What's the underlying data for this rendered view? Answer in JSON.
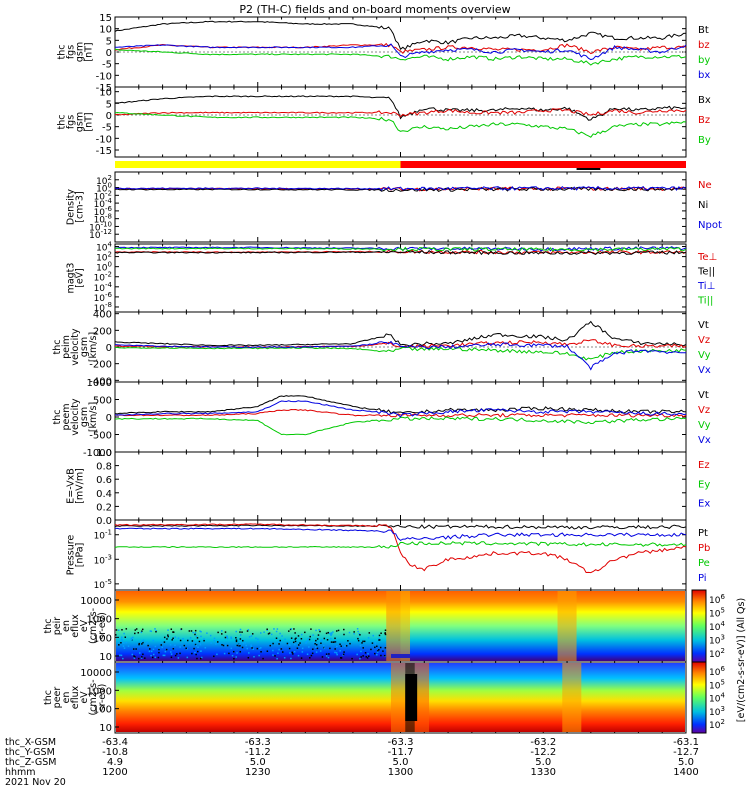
{
  "title": "P2 (TH-C) fields and on-board moments overview",
  "time_axis": {
    "ticks": [
      {
        "label": "1200",
        "t": 0
      },
      {
        "label": "1230",
        "t": 30
      },
      {
        "label": "1300",
        "t": 60
      },
      {
        "label": "1330",
        "t": 90
      },
      {
        "label": "1400",
        "t": 120
      }
    ],
    "rows": [
      {
        "name": "thc_X-GSM",
        "values": [
          "-63.4",
          "-63.3",
          "-63.3",
          "-63.2",
          "-63.1"
        ]
      },
      {
        "name": "thc_Y-GSM",
        "values": [
          "-10.8",
          "-11.2",
          "-11.7",
          "-12.2",
          "-12.7"
        ]
      },
      {
        "name": "thc_Z-GSM",
        "values": [
          "4.9",
          "5.0",
          "5.0",
          "5.0",
          "5.0"
        ]
      },
      {
        "name": "hhmm",
        "values": [
          "1200",
          "1230",
          "1300",
          "1330",
          "1400"
        ]
      }
    ],
    "date": "2021 Nov 20"
  },
  "colorbar": {
    "label": "[eV/(cm2-s-sr-eV)] (All Qs)",
    "ticks_top": [
      "10^6",
      "10^5",
      "10^4",
      "10^3",
      "10^2"
    ],
    "ticks_bottom": [
      "10^6",
      "10^5",
      "10^4",
      "10^3",
      "10^2"
    ]
  },
  "colors": {
    "black": "#000000",
    "red": "#e00000",
    "green": "#00c800",
    "blue": "#0000e0",
    "yellow": "#ffff00",
    "barred": "#ff0000"
  },
  "chart_data": [
    {
      "type": "line",
      "id": "fgs",
      "ylabel": [
        "thc",
        "fgs",
        "gsm",
        "[nT]"
      ],
      "ylim": [
        -15,
        15
      ],
      "yticks": [
        15,
        10,
        5,
        0,
        -5,
        -10,
        -15
      ],
      "series": [
        {
          "name": "Bt",
          "color": "black",
          "x": [
            0,
            10,
            20,
            30,
            40,
            50,
            58,
            60,
            65,
            70,
            75,
            80,
            85,
            90,
            95,
            100,
            105,
            110,
            115,
            120
          ],
          "values": [
            9,
            12,
            13,
            13,
            12,
            12,
            10,
            1,
            5,
            4,
            6,
            6,
            7,
            6,
            5,
            8,
            6,
            6,
            6,
            8
          ]
        },
        {
          "name": "bz",
          "color": "red",
          "x": [
            0,
            10,
            20,
            30,
            40,
            50,
            58,
            60,
            65,
            70,
            75,
            80,
            85,
            90,
            95,
            100,
            105,
            110,
            115,
            120
          ],
          "values": [
            1,
            3,
            2,
            2,
            2,
            3,
            3,
            0,
            1,
            2,
            2,
            1,
            1,
            1,
            3,
            0,
            2,
            1,
            2,
            2
          ]
        },
        {
          "name": "by",
          "color": "green",
          "x": [
            0,
            10,
            20,
            30,
            40,
            50,
            58,
            60,
            65,
            70,
            75,
            80,
            85,
            90,
            95,
            100,
            105,
            110,
            115,
            120
          ],
          "values": [
            1,
            0,
            -1,
            -1,
            -1,
            -1,
            -2,
            -3,
            -2,
            -3,
            -2,
            -3,
            -2,
            -3,
            -3,
            -5,
            -3,
            -2,
            -2,
            -2
          ]
        },
        {
          "name": "bx",
          "color": "blue",
          "x": [
            0,
            10,
            20,
            30,
            40,
            50,
            58,
            60,
            65,
            70,
            75,
            80,
            85,
            90,
            95,
            100,
            105,
            110,
            115,
            120
          ],
          "values": [
            2,
            3,
            2,
            2,
            2,
            2,
            3,
            -2,
            0,
            1,
            1,
            0,
            1,
            0,
            1,
            -3,
            2,
            1,
            0,
            3
          ]
        }
      ]
    },
    {
      "type": "line",
      "id": "fgs2",
      "ylabel": [
        "thc",
        "fgs",
        "gsm",
        "[nT]"
      ],
      "ylim": [
        -18,
        12
      ],
      "yticks": [
        10,
        5,
        0,
        -5,
        -10,
        -15
      ],
      "series": [
        {
          "name": "Bx",
          "color": "black",
          "x": [
            0,
            10,
            20,
            30,
            40,
            50,
            58,
            60,
            65,
            70,
            75,
            80,
            85,
            90,
            95,
            100,
            105,
            110,
            115,
            120
          ],
          "values": [
            5,
            7,
            8,
            8,
            8,
            8,
            7,
            -1,
            3,
            2,
            2,
            2,
            3,
            2,
            3,
            -2,
            3,
            2,
            3,
            3
          ]
        },
        {
          "name": "Bz",
          "color": "red",
          "x": [
            0,
            10,
            20,
            30,
            40,
            50,
            58,
            60,
            65,
            70,
            75,
            80,
            85,
            90,
            95,
            100,
            105,
            110,
            115,
            120
          ],
          "values": [
            0,
            1,
            1,
            1,
            1,
            1,
            1,
            0,
            1,
            2,
            1,
            1,
            1,
            2,
            2,
            0,
            2,
            1,
            2,
            2
          ]
        },
        {
          "name": "By",
          "color": "green",
          "x": [
            0,
            10,
            20,
            30,
            40,
            50,
            58,
            60,
            65,
            70,
            75,
            80,
            85,
            90,
            95,
            100,
            105,
            110,
            115,
            120
          ],
          "values": [
            1,
            0,
            -1,
            -1,
            -1,
            -1,
            -2,
            -7,
            -5,
            -6,
            -5,
            -4,
            -4,
            -5,
            -6,
            -9,
            -5,
            -4,
            -4,
            -3
          ]
        }
      ]
    },
    {
      "type": "bar",
      "id": "status",
      "segments": [
        {
          "from": 0,
          "to": 60,
          "color": "yellow"
        },
        {
          "from": 60,
          "to": 120,
          "color": "barred"
        }
      ]
    },
    {
      "type": "line",
      "id": "density",
      "log": true,
      "ylabel": [
        "Density",
        "[cm-3]"
      ],
      "ylim": [
        -14,
        4
      ],
      "yticks": [
        2,
        0,
        -2,
        -4,
        -6,
        -8,
        -10,
        -12
      ],
      "series": [
        {
          "name": "Ne",
          "color": "red",
          "x": [
            0,
            30,
            60,
            90,
            120
          ],
          "values": [
            -0.3,
            -0.3,
            -0.4,
            -0.3,
            -0.3
          ]
        },
        {
          "name": "Ni",
          "color": "black",
          "x": [
            0,
            30,
            60,
            90,
            120
          ],
          "values": [
            -0.5,
            -0.5,
            -0.6,
            -0.4,
            -0.4
          ]
        },
        {
          "name": "Npot",
          "color": "blue",
          "x": [
            0,
            30,
            60,
            90,
            120
          ],
          "values": [
            -0.2,
            -0.2,
            -0.3,
            -0.2,
            -0.2
          ]
        }
      ]
    },
    {
      "type": "line",
      "id": "temp",
      "log": true,
      "ylabel": [
        "magt3",
        "[eV]"
      ],
      "ylim": [
        -9,
        4.5
      ],
      "yticks": [
        4,
        2,
        0,
        -2,
        -4,
        -6,
        -8
      ],
      "series": [
        {
          "name": "Te⊥",
          "color": "red",
          "x": [
            0,
            30,
            60,
            90,
            120
          ],
          "values": [
            2.9,
            2.9,
            3.0,
            2.8,
            2.9
          ]
        },
        {
          "name": "Te||",
          "color": "black",
          "x": [
            0,
            30,
            60,
            90,
            120
          ],
          "values": [
            2.8,
            2.8,
            2.9,
            2.7,
            2.8
          ]
        },
        {
          "name": "Ti⊥",
          "color": "blue",
          "x": [
            0,
            30,
            60,
            90,
            120
          ],
          "values": [
            3.8,
            3.8,
            3.6,
            3.5,
            3.7
          ]
        },
        {
          "name": "Ti||",
          "color": "green",
          "x": [
            0,
            30,
            60,
            90,
            120
          ],
          "values": [
            3.6,
            3.6,
            3.5,
            3.4,
            3.5
          ]
        }
      ]
    },
    {
      "type": "line",
      "id": "peim",
      "ylabel": [
        "thc",
        "peim",
        "velocity",
        "gsm",
        "[km/s]"
      ],
      "ylim": [
        -420,
        420
      ],
      "yticks": [
        400,
        200,
        0,
        -200,
        -400
      ],
      "series": [
        {
          "name": "Vt",
          "color": "black",
          "x": [
            0,
            10,
            20,
            30,
            40,
            50,
            58,
            60,
            65,
            70,
            80,
            90,
            95,
            100,
            105,
            110,
            120
          ],
          "values": [
            60,
            40,
            20,
            20,
            30,
            40,
            150,
            20,
            40,
            40,
            150,
            120,
            80,
            300,
            100,
            50,
            30
          ]
        },
        {
          "name": "Vz",
          "color": "red",
          "x": [
            0,
            10,
            20,
            30,
            40,
            50,
            58,
            60,
            65,
            70,
            80,
            90,
            95,
            100,
            105,
            110,
            120
          ],
          "values": [
            10,
            5,
            0,
            0,
            5,
            10,
            40,
            0,
            10,
            20,
            50,
            60,
            30,
            80,
            20,
            10,
            10
          ]
        },
        {
          "name": "Vy",
          "color": "green",
          "x": [
            0,
            10,
            20,
            30,
            40,
            50,
            58,
            60,
            65,
            70,
            80,
            90,
            95,
            100,
            105,
            110,
            120
          ],
          "values": [
            -10,
            -10,
            -15,
            -15,
            -10,
            -20,
            -60,
            -20,
            -30,
            -20,
            -40,
            -60,
            -80,
            -150,
            -60,
            -50,
            -40
          ]
        },
        {
          "name": "Vx",
          "color": "blue",
          "x": [
            0,
            10,
            20,
            30,
            40,
            50,
            58,
            60,
            65,
            70,
            80,
            90,
            95,
            100,
            105,
            110,
            120
          ],
          "values": [
            30,
            10,
            0,
            0,
            0,
            10,
            60,
            0,
            0,
            0,
            30,
            20,
            10,
            -250,
            -80,
            -40,
            -70
          ]
        }
      ]
    },
    {
      "type": "line",
      "id": "peem",
      "ylabel": [
        "thc",
        "peem",
        "velocity",
        "gsm",
        "[km/s]"
      ],
      "ylim": [
        -1000,
        1000
      ],
      "yticks": [
        1000,
        500,
        0,
        -500,
        -1000
      ],
      "series": [
        {
          "name": "Vt",
          "color": "black",
          "x": [
            0,
            10,
            20,
            30,
            35,
            40,
            50,
            55,
            60,
            70,
            80,
            90,
            100,
            110,
            120
          ],
          "values": [
            100,
            150,
            150,
            300,
            600,
            600,
            300,
            200,
            100,
            200,
            200,
            250,
            200,
            150,
            150
          ]
        },
        {
          "name": "Vz",
          "color": "red",
          "x": [
            0,
            10,
            20,
            30,
            35,
            40,
            50,
            55,
            60,
            70,
            80,
            90,
            100,
            110,
            120
          ],
          "values": [
            50,
            50,
            50,
            100,
            200,
            200,
            50,
            50,
            50,
            50,
            50,
            50,
            50,
            50,
            50
          ]
        },
        {
          "name": "Vy",
          "color": "green",
          "x": [
            0,
            10,
            20,
            30,
            35,
            40,
            50,
            55,
            60,
            70,
            80,
            90,
            100,
            110,
            120
          ],
          "values": [
            -50,
            -50,
            -50,
            -100,
            -500,
            -500,
            -150,
            -100,
            -50,
            -50,
            -50,
            -100,
            -150,
            -80,
            -50
          ]
        },
        {
          "name": "Vx",
          "color": "blue",
          "x": [
            0,
            10,
            20,
            30,
            35,
            40,
            50,
            55,
            60,
            70,
            80,
            90,
            100,
            110,
            120
          ],
          "values": [
            50,
            100,
            100,
            150,
            450,
            450,
            200,
            150,
            50,
            150,
            200,
            150,
            150,
            100,
            80
          ]
        }
      ]
    },
    {
      "type": "line",
      "id": "efield",
      "ylabel": [
        "E=-VxB",
        "[mV/m]"
      ],
      "ylim": [
        0,
        1
      ],
      "yticks": [
        0.0,
        0.2,
        0.4,
        0.6,
        0.8,
        1.0
      ],
      "series": [
        {
          "name": "Ez",
          "color": "red",
          "x": [],
          "values": []
        },
        {
          "name": "Ey",
          "color": "green",
          "x": [],
          "values": []
        },
        {
          "name": "Ex",
          "color": "blue",
          "x": [],
          "values": []
        }
      ]
    },
    {
      "type": "line",
      "id": "pressure",
      "log": true,
      "ylabel": [
        "Pressure",
        "[nPa]"
      ],
      "ylim": [
        -5.5,
        0.2
      ],
      "yticks": [
        -1,
        -3,
        -5
      ],
      "series": [
        {
          "name": "Pt",
          "color": "black",
          "x": [
            0,
            30,
            58,
            60,
            80,
            100,
            120
          ],
          "values": [
            -0.3,
            -0.25,
            -0.3,
            -0.35,
            -0.35,
            -0.4,
            -0.35
          ]
        },
        {
          "name": "Pb",
          "color": "red",
          "x": [
            0,
            30,
            58,
            60,
            62,
            65,
            70,
            75,
            80,
            90,
            95,
            100,
            105,
            110,
            120
          ],
          "values": [
            -0.2,
            -0.15,
            -0.3,
            -2.5,
            -3.5,
            -3.8,
            -3.0,
            -2.8,
            -2.5,
            -2.5,
            -3.0,
            -4.2,
            -3.0,
            -2.5,
            -2.0
          ]
        },
        {
          "name": "Pe",
          "color": "green",
          "x": [
            0,
            30,
            58,
            60,
            80,
            100,
            120
          ],
          "values": [
            -2.0,
            -2.0,
            -2.0,
            -1.7,
            -1.7,
            -1.8,
            -1.8
          ]
        },
        {
          "name": "Pi",
          "color": "blue",
          "x": [
            0,
            30,
            58,
            60,
            80,
            100,
            120
          ],
          "values": [
            -0.5,
            -0.5,
            -0.7,
            -1.4,
            -1.0,
            -1.0,
            -1.0
          ]
        }
      ]
    },
    {
      "type": "heatmap",
      "id": "peir",
      "ylabel": [
        "thc",
        "peir",
        "en",
        "eflux",
        "eV",
        "(cm2-s-",
        "sr-eV)"
      ],
      "yticks": [
        "10000",
        "1000",
        "100",
        "10"
      ]
    },
    {
      "type": "heatmap",
      "id": "peer",
      "ylabel": [
        "thc",
        "peer",
        "en",
        "eflux",
        "eV",
        "(cm2-s-",
        "sr-eV)"
      ],
      "yticks": [
        "10000",
        "1000",
        "100",
        "10"
      ]
    }
  ]
}
